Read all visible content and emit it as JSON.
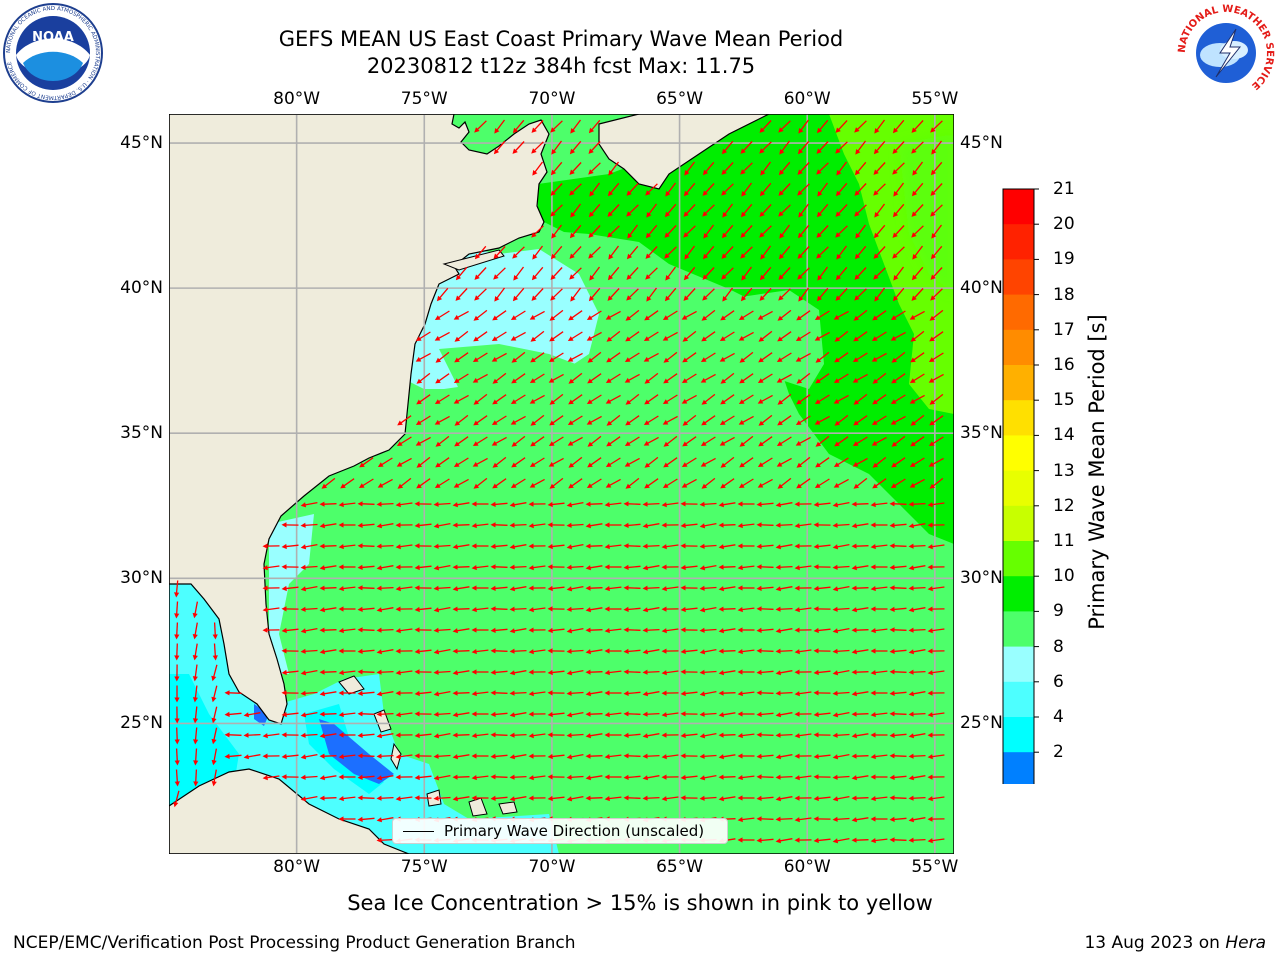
{
  "header": {
    "title_line1": "GEFS MEAN US East Coast Primary Wave Mean Period",
    "title_line2": "20230812 t12z 384h fcst   Max: 11.75"
  },
  "logos": {
    "left": "noaa-logo",
    "left_text": "NOAA",
    "left_ring_text": "NATIONAL OCEANIC AND ATMOSPHERIC ADMINISTRATION · U.S. DEPARTMENT OF COMMERCE",
    "right": "nws-logo",
    "right_ring_text": "NATIONAL WEATHER SERVICE"
  },
  "map": {
    "extent": {
      "lon_min": -85,
      "lon_max": -54.25,
      "lat_min": 20.5,
      "lat_max": 46
    },
    "lon_ticks": [
      {
        "value": -80,
        "label": "80°W"
      },
      {
        "value": -75,
        "label": "75°W"
      },
      {
        "value": -70,
        "label": "70°W"
      },
      {
        "value": -65,
        "label": "65°W"
      },
      {
        "value": -60,
        "label": "60°W"
      },
      {
        "value": -55,
        "label": "55°W"
      }
    ],
    "lat_ticks": [
      {
        "value": 45,
        "label": "45°N"
      },
      {
        "value": 40,
        "label": "40°N"
      },
      {
        "value": 35,
        "label": "35°N"
      },
      {
        "value": 30,
        "label": "30°N"
      },
      {
        "value": 25,
        "label": "25°N"
      }
    ],
    "gridlines": true,
    "land_color": "#efecdc",
    "coastline_color": "#000000",
    "arrow_color": "#ff0000",
    "legend_label": "Primary Wave Direction (unscaled)",
    "legend_location": "lower-center",
    "max_value": 11.75
  },
  "colorbar": {
    "title": "Primary Wave Mean Period [s]",
    "ticks": [
      "21",
      "20",
      "19",
      "18",
      "17",
      "16",
      "15",
      "14",
      "13",
      "12",
      "11",
      "10",
      "9",
      "8",
      "6",
      "4",
      "2"
    ],
    "colors": [
      "#ff0000",
      "#ff2200",
      "#ff4400",
      "#ff6a00",
      "#ff8c00",
      "#ffb000",
      "#ffe000",
      "#ffff00",
      "#e8ff00",
      "#c8ff00",
      "#66ff00",
      "#00ee00",
      "#4dff6a",
      "#99ffff",
      "#4dffff",
      "#00ffff",
      "#0080ff"
    ],
    "extend_color": "#0000ff"
  },
  "caption": "Sea Ice Concentration > 15% is shown in pink to yellow",
  "footer": {
    "left": "NCEP/EMC/Verification Post Processing Product Generation Branch",
    "right_date": "13 Aug 2023 on ",
    "right_machine": "Hera"
  }
}
